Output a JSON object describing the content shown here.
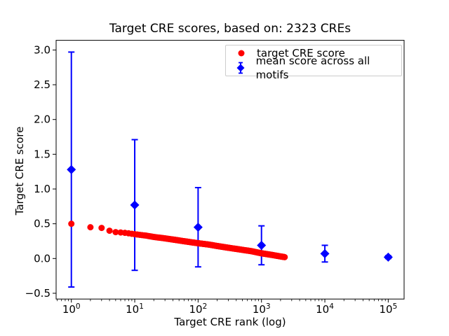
{
  "chart_data": {
    "type": "scatter",
    "title": "Target CRE scores, based on: 2323 CREs",
    "xlabel": "Target CRE rank (log)",
    "ylabel": "Target CRE score",
    "x_scale": "log",
    "xlim": [
      0.575,
      178000
    ],
    "ylim": [
      -0.583,
      3.139
    ],
    "x_ticks": [
      1,
      10,
      100,
      1000,
      10000,
      100000
    ],
    "x_tick_labels": [
      "10^0",
      "10^1",
      "10^2",
      "10^3",
      "10^4",
      "10^5"
    ],
    "y_ticks": [
      -0.5,
      0.0,
      0.5,
      1.0,
      1.5,
      2.0,
      2.5,
      3.0
    ],
    "y_tick_labels": [
      "−0.5",
      "0.0",
      "0.5",
      "1.0",
      "1.5",
      "2.0",
      "2.5",
      "3.0"
    ],
    "grid": false,
    "series": [
      {
        "name": "target CRE score",
        "type": "scatter",
        "marker": "circle",
        "color": "#ff0000",
        "n_points": 2323,
        "note": "dense monotonically decreasing curve over ranks 1-2323; sampled points (rank, score)",
        "points": [
          [
            1,
            0.5
          ],
          [
            2,
            0.45
          ],
          [
            3,
            0.44
          ],
          [
            4,
            0.4
          ],
          [
            5,
            0.38
          ],
          [
            7,
            0.37
          ],
          [
            10,
            0.35
          ],
          [
            15,
            0.33
          ],
          [
            20,
            0.31
          ],
          [
            30,
            0.29
          ],
          [
            50,
            0.26
          ],
          [
            70,
            0.24
          ],
          [
            100,
            0.22
          ],
          [
            150,
            0.2
          ],
          [
            200,
            0.18
          ],
          [
            300,
            0.155
          ],
          [
            500,
            0.125
          ],
          [
            700,
            0.105
          ],
          [
            1000,
            0.075
          ],
          [
            1500,
            0.05
          ],
          [
            2000,
            0.03
          ],
          [
            2323,
            0.02
          ]
        ]
      },
      {
        "name": "mean score across all motifs",
        "type": "errorbar",
        "marker": "diamond",
        "color": "#0000ff",
        "points": [
          {
            "x": 1,
            "y": 1.28,
            "err": 1.69
          },
          {
            "x": 10,
            "y": 0.77,
            "err": 0.94
          },
          {
            "x": 100,
            "y": 0.45,
            "err": 0.57
          },
          {
            "x": 1000,
            "y": 0.19,
            "err": 0.28
          },
          {
            "x": 10000,
            "y": 0.07,
            "err": 0.12
          },
          {
            "x": 100000,
            "y": 0.02,
            "err": 0.02
          }
        ]
      }
    ],
    "legend": {
      "location": "upper right",
      "entries": [
        {
          "label": "target CRE score",
          "marker": "circle",
          "color": "#ff0000"
        },
        {
          "label": "mean score across all motifs",
          "marker": "diamond-errorbar",
          "color": "#0000ff"
        }
      ]
    }
  }
}
